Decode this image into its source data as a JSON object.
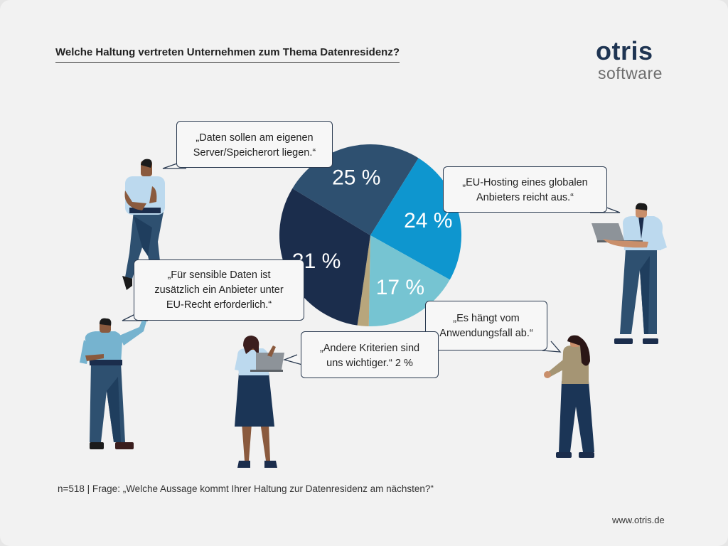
{
  "title": "Welche Haltung vertreten Unternehmen zum Thema Datenresidenz?",
  "logo": {
    "top": "otris",
    "bottom": "software"
  },
  "footnote": "n=518 | Frage: „Welche Aussage kommt Ihrer Haltung zur Datenresidenz am nächsten?“",
  "url": "www.otris.de",
  "bubbles": {
    "own_server": {
      "line1": "„Daten sollen am eigenen",
      "line2": "Server/Speicherort liegen.“"
    },
    "eu_hosting": {
      "line1": "„EU-Hosting eines globalen",
      "line2": "Anbieters reicht aus.“"
    },
    "eu_law": {
      "line1": "„Für sensible Daten ist",
      "line2": "zusätzlich ein Anbieter unter",
      "line3": "EU-Recht erforderlich.“"
    },
    "depends": {
      "line1": "„Es hängt vom",
      "line2": "Anwendungsfall ab.“"
    },
    "other": {
      "line1": "„Andere Kriterien sind",
      "line2": "uns wichtiger.“  2 %"
    }
  },
  "chart_data": {
    "type": "pie",
    "title": "Welche Haltung vertreten Unternehmen zum Thema Datenresidenz?",
    "slices": [
      {
        "label": "„Daten sollen am eigenen Server/Speicherort liegen.“",
        "value": 25,
        "label_text": "25 %",
        "color": "#2e5070"
      },
      {
        "label": "„EU-Hosting eines globalen Anbieters reicht aus.“",
        "value": 24,
        "label_text": "24 %",
        "color": "#0e96cf"
      },
      {
        "label": "„Es hängt vom Anwendungsfall ab.“",
        "value": 17,
        "label_text": "17 %",
        "color": "#76c4d2"
      },
      {
        "label": "„Andere Kriterien sind uns wichtiger.“",
        "value": 2,
        "label_text": "",
        "color": "#b8a67c"
      },
      {
        "label": "„Für sensible Daten ist zusätzlich ein Anbieter unter EU-Recht erforderlich.“",
        "value": 31,
        "label_text": "31 %",
        "color": "#1b2d4c"
      }
    ],
    "note": "n=518"
  },
  "colors": {
    "navy": "#1e3452",
    "text": "#222222",
    "background": "#f2f2f2"
  }
}
